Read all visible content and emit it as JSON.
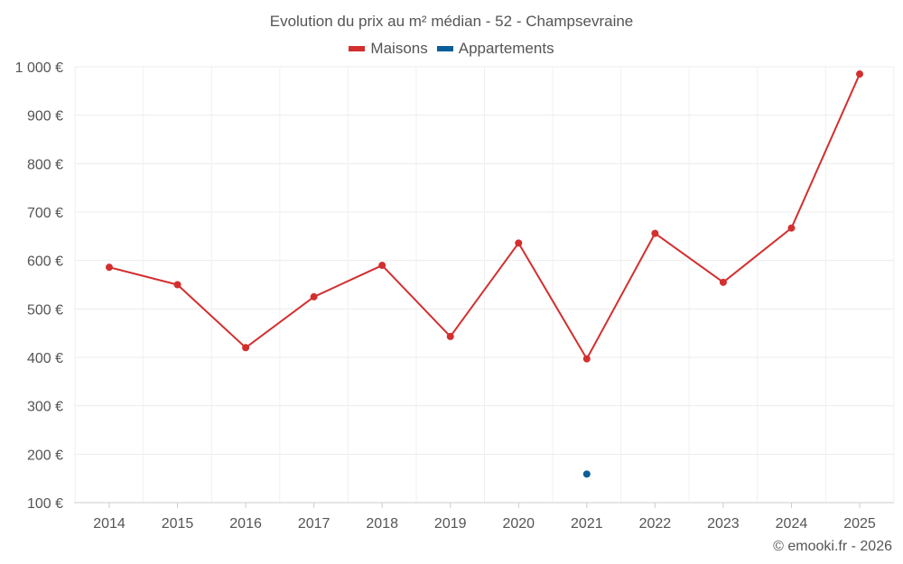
{
  "chart_data": {
    "type": "line",
    "title": "Evolution du prix au m² médian - 52 - Champsevraine",
    "categories": [
      "2014",
      "2015",
      "2016",
      "2017",
      "2018",
      "2019",
      "2020",
      "2021",
      "2022",
      "2023",
      "2024",
      "2025"
    ],
    "series": [
      {
        "name": "Maisons",
        "color": "#d32f2f",
        "values": [
          586,
          550,
          420,
          525,
          590,
          443,
          636,
          397,
          656,
          555,
          667,
          985
        ]
      },
      {
        "name": "Appartements",
        "color": "#0a5f98",
        "values": [
          null,
          null,
          null,
          null,
          null,
          null,
          null,
          159,
          null,
          null,
          null,
          null
        ]
      }
    ],
    "y_ticks": [
      100,
      200,
      300,
      400,
      500,
      600,
      700,
      800,
      900,
      1000
    ],
    "y_tick_labels": [
      "100 €",
      "200 €",
      "300 €",
      "400 €",
      "500 €",
      "600 €",
      "700 €",
      "800 €",
      "900 €",
      "1 000 €"
    ],
    "ylim": [
      100,
      1000
    ],
    "grid": true,
    "legend_position": "top"
  },
  "credit": "© emooki.fr - 2026"
}
